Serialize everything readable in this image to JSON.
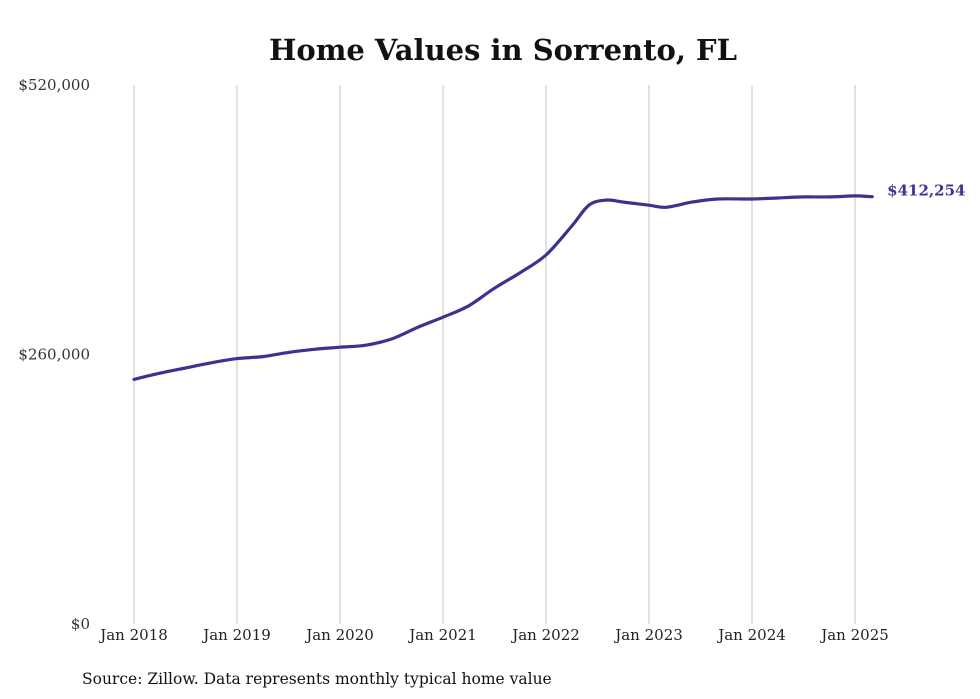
{
  "chart_data": {
    "type": "line",
    "title": "Home Values in Sorrento, FL",
    "source": "Source: Zillow. Data represents monthly typical home value",
    "y_ticks": [
      {
        "value": 0,
        "label": "$0"
      },
      {
        "value": 260000,
        "label": "$260,000"
      },
      {
        "value": 520000,
        "label": "$520,000"
      }
    ],
    "x_ticks": [
      {
        "value": "2018-01",
        "label": "Jan 2018"
      },
      {
        "value": "2019-01",
        "label": "Jan 2019"
      },
      {
        "value": "2020-01",
        "label": "Jan 2020"
      },
      {
        "value": "2021-01",
        "label": "Jan 2021"
      },
      {
        "value": "2022-01",
        "label": "Jan 2022"
      },
      {
        "value": "2023-01",
        "label": "Jan 2023"
      },
      {
        "value": "2024-01",
        "label": "Jan 2024"
      },
      {
        "value": "2025-01",
        "label": "Jan 2025"
      }
    ],
    "ylim": [
      0,
      520000
    ],
    "xlim": [
      "2018-01",
      "2025-03"
    ],
    "grid": "vertical",
    "line_color": "#3a3390",
    "series": [
      {
        "end_label": "$412,254",
        "points": [
          {
            "x": "2018-01",
            "y": 236000
          },
          {
            "x": "2018-04",
            "y": 242000
          },
          {
            "x": "2018-07",
            "y": 247000
          },
          {
            "x": "2018-10",
            "y": 252000
          },
          {
            "x": "2019-01",
            "y": 256000
          },
          {
            "x": "2019-04",
            "y": 258000
          },
          {
            "x": "2019-07",
            "y": 262000
          },
          {
            "x": "2019-10",
            "y": 265000
          },
          {
            "x": "2020-01",
            "y": 267000
          },
          {
            "x": "2020-04",
            "y": 269000
          },
          {
            "x": "2020-07",
            "y": 275000
          },
          {
            "x": "2020-10",
            "y": 286000
          },
          {
            "x": "2021-01",
            "y": 296000
          },
          {
            "x": "2021-04",
            "y": 307000
          },
          {
            "x": "2021-07",
            "y": 324000
          },
          {
            "x": "2021-10",
            "y": 339000
          },
          {
            "x": "2022-01",
            "y": 356000
          },
          {
            "x": "2022-04",
            "y": 384000
          },
          {
            "x": "2022-06",
            "y": 404000
          },
          {
            "x": "2022-08",
            "y": 409000
          },
          {
            "x": "2022-10",
            "y": 407000
          },
          {
            "x": "2023-01",
            "y": 404000
          },
          {
            "x": "2023-03",
            "y": 402000
          },
          {
            "x": "2023-06",
            "y": 407000
          },
          {
            "x": "2023-09",
            "y": 410000
          },
          {
            "x": "2024-01",
            "y": 410000
          },
          {
            "x": "2024-04",
            "y": 411000
          },
          {
            "x": "2024-07",
            "y": 412000
          },
          {
            "x": "2024-10",
            "y": 412000
          },
          {
            "x": "2025-01",
            "y": 413000
          },
          {
            "x": "2025-03",
            "y": 412254
          }
        ]
      }
    ]
  }
}
